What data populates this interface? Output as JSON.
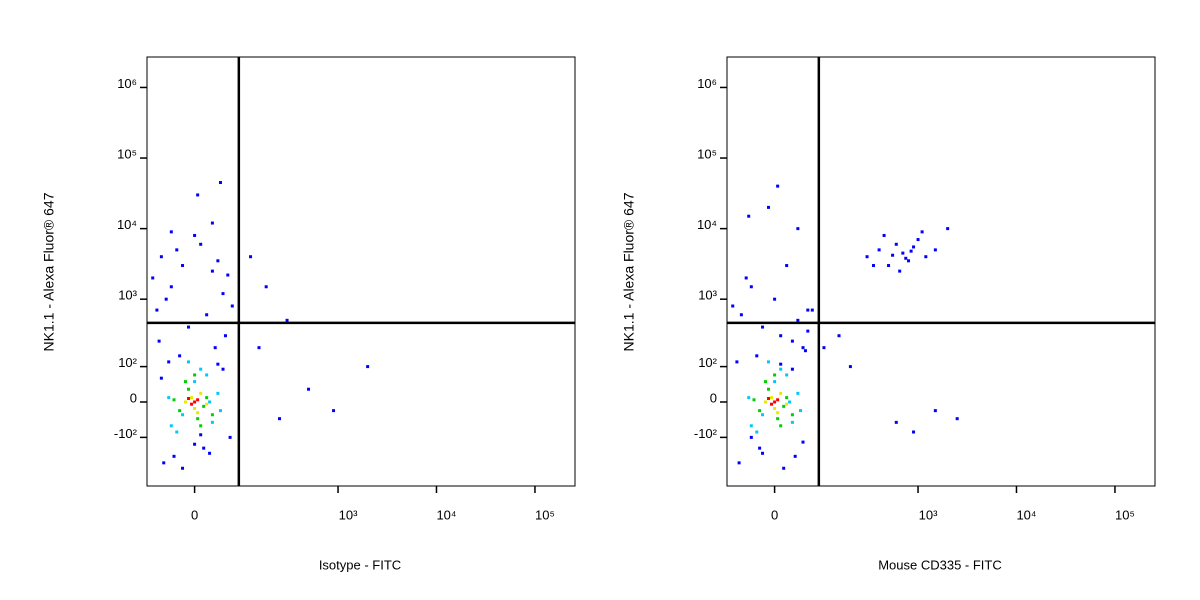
{
  "chart_data": [
    {
      "type": "scatter",
      "x_label": "Isotype - FITC",
      "y_label": "NK1.1 - Alexa Fluor® 647",
      "xscale": "biexponential",
      "yscale": "biexponential",
      "xlim": [
        -95,
        255000
      ],
      "ylim": [
        -540,
        2700000
      ],
      "xticks": [
        0,
        {
          "value": 1000,
          "label": "10³"
        },
        {
          "value": 10000,
          "label": "10⁴"
        },
        {
          "value": 100000,
          "label": "10⁵"
        }
      ],
      "yticks": [
        {
          "value": -100,
          "label": "-10²"
        },
        0,
        {
          "value": 100,
          "label": "10²"
        },
        {
          "value": 1000,
          "label": "10³"
        },
        {
          "value": 10000,
          "label": "10⁴"
        },
        {
          "value": 100000,
          "label": "10⁵"
        },
        {
          "value": 1000000,
          "label": "10⁶"
        }
      ],
      "gate": {
        "x": 86,
        "y": 460
      },
      "series": [
        {
          "color": "#0000ff",
          "x": [
            -80,
            -60,
            -40,
            -20,
            10,
            30,
            50,
            70,
            -70,
            -30,
            0,
            40,
            60,
            -50,
            20,
            -10,
            55,
            -65,
            35,
            -25,
            5,
            45,
            -45,
            15,
            -35,
            25,
            65,
            -55,
            120,
            180,
            300,
            500,
            900,
            2000,
            150,
            250,
            -40,
            30,
            -20,
            10,
            50,
            -60,
            0,
            40
          ],
          "y": [
            2000,
            4000,
            1500,
            3000,
            6000,
            2500,
            1200,
            800,
            700,
            5000,
            8000,
            3500,
            2200,
            1000,
            600,
            400,
            300,
            250,
            200,
            150,
            30000,
            45000,
            120,
            -150,
            -200,
            -180,
            -100,
            -250,
            4000,
            1500,
            500,
            30,
            -20,
            100,
            200,
            -40,
            9000,
            12000,
            -300,
            -90,
            90,
            60,
            -130,
            110
          ]
        },
        {
          "color": "#00c8ff",
          "x": [
            -40,
            -20,
            0,
            20,
            40,
            -30,
            10,
            30,
            -10,
            25,
            -45,
            45
          ],
          "y": [
            -60,
            -30,
            50,
            70,
            20,
            -80,
            90,
            -50,
            120,
            0,
            10,
            -20
          ]
        },
        {
          "color": "#00d000",
          "x": [
            -25,
            -10,
            5,
            20,
            -15,
            15,
            30,
            -35,
            0,
            10
          ],
          "y": [
            -20,
            30,
            -40,
            10,
            50,
            -10,
            -30,
            5,
            70,
            -60
          ]
        },
        {
          "color": "#e8e800",
          "x": [
            -15,
            0,
            10,
            -5,
            5,
            20
          ],
          "y": [
            0,
            -15,
            20,
            10,
            -25,
            -5
          ]
        },
        {
          "color": "#ff0000",
          "x": [
            -5,
            5,
            0,
            -10
          ],
          "y": [
            -5,
            5,
            0,
            8
          ]
        }
      ]
    },
    {
      "type": "scatter",
      "x_label": "Mouse CD335 - FITC",
      "y_label": "NK1.1 - Alexa Fluor® 647",
      "xscale": "biexponential",
      "yscale": "biexponential",
      "xlim": [
        -95,
        255000
      ],
      "ylim": [
        -540,
        2700000
      ],
      "xticks": [
        0,
        {
          "value": 1000,
          "label": "10³"
        },
        {
          "value": 10000,
          "label": "10⁴"
        },
        {
          "value": 100000,
          "label": "10⁵"
        }
      ],
      "yticks": [
        {
          "value": -100,
          "label": "-10²"
        },
        0,
        {
          "value": 100,
          "label": "10²"
        },
        {
          "value": 1000,
          "label": "10³"
        },
        {
          "value": 10000,
          "label": "10⁴"
        },
        {
          "value": 100000,
          "label": "10⁵"
        },
        {
          "value": 1000000,
          "label": "10⁶"
        }
      ],
      "gate": {
        "x": 86,
        "y": 460
      },
      "series": [
        {
          "color": "#0000ff",
          "x": [
            -80,
            -60,
            -40,
            -20,
            10,
            30,
            50,
            70,
            -70,
            -30,
            0,
            40,
            60,
            -50,
            20,
            -10,
            55,
            -65,
            35,
            -25,
            5,
            -45,
            15,
            -40,
            30,
            -20,
            10,
            50,
            300,
            400,
            500,
            600,
            700,
            800,
            900,
            1000,
            1200,
            1500,
            450,
            650,
            550,
            750,
            350,
            850,
            1100,
            2000,
            150,
            200,
            600,
            900,
            1500,
            2500,
            100,
            60,
            40
          ],
          "y": [
            800,
            600,
            1500,
            400,
            300,
            250,
            200,
            700,
            120,
            150,
            1000,
            500,
            350,
            2000,
            3000,
            20000,
            180,
            -250,
            -200,
            -150,
            40000,
            15000,
            -300,
            -100,
            90,
            -180,
            110,
            -120,
            4000,
            5000,
            3000,
            6000,
            4500,
            3500,
            5500,
            7000,
            4000,
            5000,
            8000,
            2500,
            4200,
            3800,
            3000,
            4800,
            9000,
            10000,
            300,
            100,
            -50,
            -80,
            -20,
            -40,
            200,
            700,
            10000
          ]
        },
        {
          "color": "#00c8ff",
          "x": [
            -40,
            -20,
            0,
            20,
            40,
            -30,
            10,
            30,
            -10,
            25,
            -45,
            45
          ],
          "y": [
            -60,
            -30,
            50,
            70,
            20,
            -80,
            90,
            -50,
            120,
            0,
            10,
            -20
          ]
        },
        {
          "color": "#00d000",
          "x": [
            -25,
            -10,
            5,
            20,
            -15,
            15,
            30,
            -35,
            0,
            10
          ],
          "y": [
            -20,
            30,
            -40,
            10,
            50,
            -10,
            -30,
            5,
            70,
            -60
          ]
        },
        {
          "color": "#e8e800",
          "x": [
            -15,
            0,
            10,
            -5,
            5,
            20
          ],
          "y": [
            0,
            -15,
            20,
            10,
            -25,
            -5
          ]
        },
        {
          "color": "#ff0000",
          "x": [
            -5,
            5,
            0,
            -10
          ],
          "y": [
            -5,
            5,
            0,
            8
          ]
        }
      ]
    }
  ]
}
